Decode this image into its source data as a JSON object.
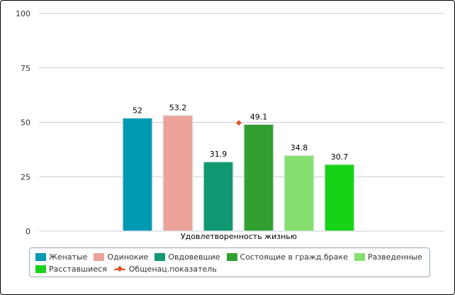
{
  "chart_data": {
    "type": "bar",
    "xlabel": "Удовлетворенность жизнью",
    "categories": [
      "Удовлетворенность жизнью"
    ],
    "ylim": [
      0,
      100
    ],
    "yticks": [
      0,
      25,
      50,
      75,
      100
    ],
    "grid": true,
    "legend_position": "bottom",
    "series": [
      {
        "name": "Женатые",
        "values": [
          52
        ],
        "label": "52",
        "color": "#0099b3"
      },
      {
        "name": "Одинокие",
        "values": [
          53.2
        ],
        "label": "53.2",
        "color": "#eba39a"
      },
      {
        "name": "Овдовевшие",
        "values": [
          31.9
        ],
        "label": "31.9",
        "color": "#109872"
      },
      {
        "name": "Состоящие в гражд.браке",
        "values": [
          49.1
        ],
        "label": "49.1",
        "color": "#31a031"
      },
      {
        "name": "Разведенные",
        "values": [
          34.8
        ],
        "label": "34.8",
        "color": "#85e070"
      },
      {
        "name": "Расставшиеся",
        "values": [
          30.7
        ],
        "label": "30.7",
        "color": "#17d317"
      }
    ],
    "marker_series": {
      "name": "Общенац.показатель",
      "values": [
        49.1
      ],
      "color": "#e0552a"
    }
  }
}
